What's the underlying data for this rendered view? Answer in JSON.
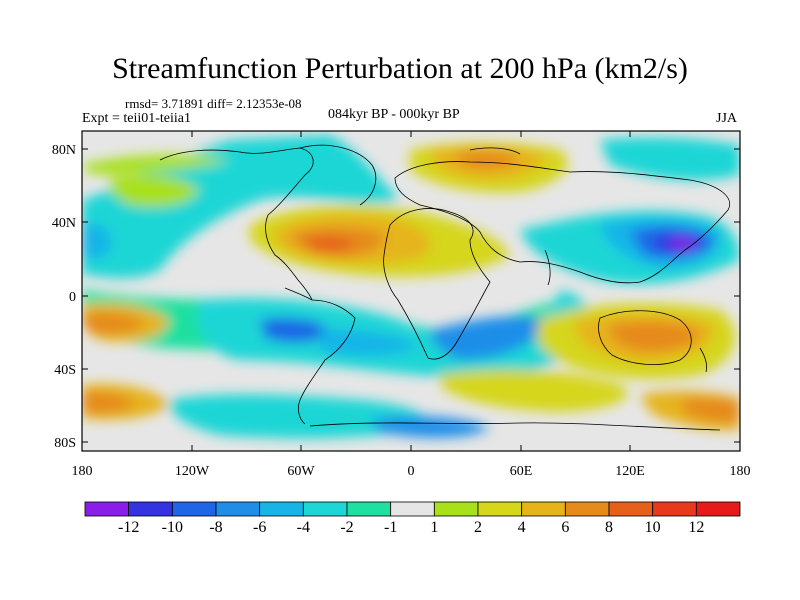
{
  "title": "Streamfunction Perturbation at 200 hPa (km2/s)",
  "stats": "rmsd= 3.71891 diff= 2.12353e-08",
  "experiment": "Expt = teii01-teiia1",
  "period": "084kyr BP - 000kyr BP",
  "season": "JJA",
  "lat_ticks": [
    "80N",
    "40N",
    "0",
    "40S",
    "80S"
  ],
  "lon_ticks": [
    "180",
    "120W",
    "60W",
    "0",
    "60E",
    "120E",
    "180"
  ],
  "colorbar": {
    "labels": [
      "-12",
      "-10",
      "-8",
      "-6",
      "-4",
      "-2",
      "-1",
      "1",
      "2",
      "4",
      "6",
      "8",
      "10",
      "12"
    ],
    "colors": [
      "#8a1ee8",
      "#3333e0",
      "#1f66e6",
      "#1f8ee8",
      "#18b4e8",
      "#1fd6d6",
      "#1fe0a0",
      "#e6e6e6",
      "#a8e01a",
      "#d6d61a",
      "#e6b41a",
      "#e68a1a",
      "#e6601a",
      "#e63a1a",
      "#e61a1a"
    ]
  }
}
